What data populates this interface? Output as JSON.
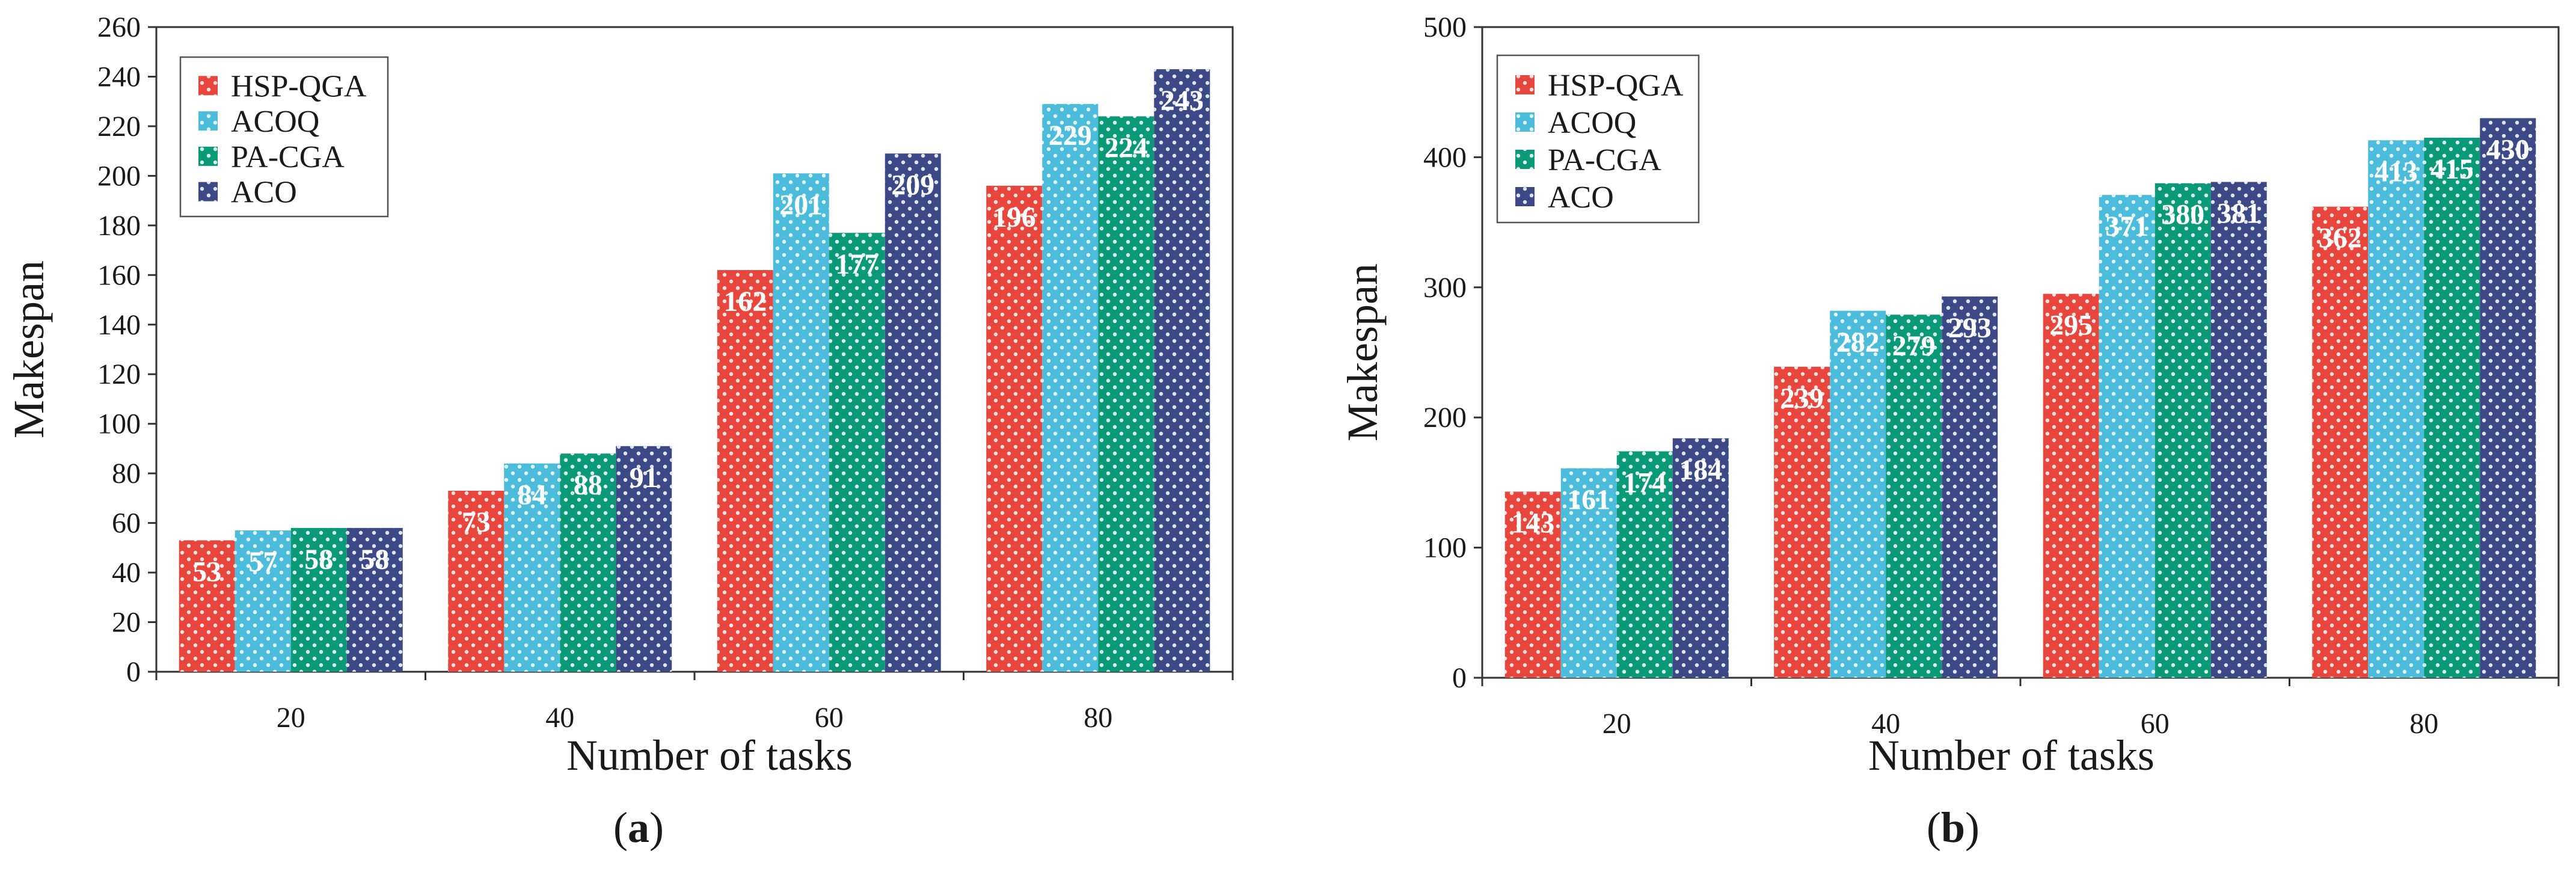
{
  "chart_data": [
    {
      "type": "bar",
      "panel_label": "a",
      "xlabel": "Number of tasks",
      "ylabel": "Makespan",
      "categories": [
        "20",
        "40",
        "60",
        "80"
      ],
      "ylim": [
        0,
        260
      ],
      "yticks": [
        0,
        20,
        40,
        60,
        80,
        100,
        120,
        140,
        160,
        180,
        200,
        220,
        240,
        260
      ],
      "legend_position": "top-left",
      "series": [
        {
          "name": "HSP-QGA",
          "color": "#e8453c",
          "values": [
            53,
            73,
            162,
            196
          ]
        },
        {
          "name": "ACOQ",
          "color": "#4bbcdb",
          "values": [
            57,
            84,
            201,
            229
          ]
        },
        {
          "name": "PA-CGA",
          "color": "#0b9a78",
          "values": [
            58,
            88,
            177,
            224
          ]
        },
        {
          "name": "ACO",
          "color": "#3b4a86",
          "values": [
            58,
            91,
            209,
            243
          ]
        }
      ]
    },
    {
      "type": "bar",
      "panel_label": "b",
      "xlabel": "Number of tasks",
      "ylabel": "Makespan",
      "categories": [
        "20",
        "40",
        "60",
        "80"
      ],
      "ylim": [
        0,
        500
      ],
      "yticks": [
        0,
        100,
        200,
        300,
        400,
        500
      ],
      "legend_position": "top-left",
      "series": [
        {
          "name": "HSP-QGA",
          "color": "#e8453c",
          "values": [
            143,
            239,
            295,
            362
          ]
        },
        {
          "name": "ACOQ",
          "color": "#4bbcdb",
          "values": [
            161,
            282,
            371,
            413
          ]
        },
        {
          "name": "PA-CGA",
          "color": "#0b9a78",
          "values": [
            174,
            279,
            380,
            415
          ]
        },
        {
          "name": "ACO",
          "color": "#3b4a86",
          "values": [
            184,
            293,
            381,
            430
          ]
        }
      ]
    }
  ]
}
